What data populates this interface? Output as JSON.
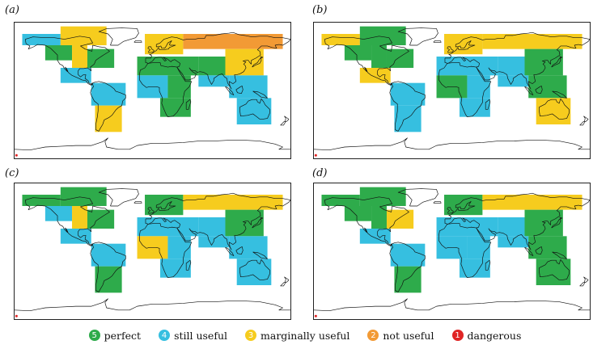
{
  "colors": {
    "perfect": "#2eab4b",
    "still_useful": "#36bfe0",
    "marginally_useful": "#f6cc1e",
    "not_useful": "#f29a35",
    "dangerous": "#e02525",
    "coast": "#111111"
  },
  "panels": [
    {
      "label": "(a)",
      "regions": [
        {
          "lon": [
            -170,
            -120
          ],
          "lat": [
            60,
            75
          ],
          "rating": "still_useful"
        },
        {
          "lon": [
            -140,
            -105
          ],
          "lat": [
            40,
            60
          ],
          "rating": "perfect"
        },
        {
          "lon": [
            -120,
            -60
          ],
          "lat": [
            60,
            85
          ],
          "rating": "marginally_useful"
        },
        {
          "lon": [
            -105,
            -85
          ],
          "lat": [
            30,
            60
          ],
          "rating": "marginally_useful"
        },
        {
          "lon": [
            -85,
            -50
          ],
          "lat": [
            30,
            55
          ],
          "rating": "perfect"
        },
        {
          "lon": [
            -120,
            -80
          ],
          "lat": [
            10,
            30
          ],
          "rating": "still_useful"
        },
        {
          "lon": [
            -80,
            -35
          ],
          "lat": [
            -20,
            10
          ],
          "rating": "still_useful"
        },
        {
          "lon": [
            -75,
            -40
          ],
          "lat": [
            -55,
            -20
          ],
          "rating": "marginally_useful"
        },
        {
          "lon": [
            -10,
            40
          ],
          "lat": [
            48,
            75
          ],
          "rating": "marginally_useful"
        },
        {
          "lon": [
            40,
            170
          ],
          "lat": [
            55,
            75
          ],
          "rating": "not_useful"
        },
        {
          "lon": [
            -20,
            60
          ],
          "lat": [
            20,
            45
          ],
          "rating": "perfect"
        },
        {
          "lon": [
            -20,
            20
          ],
          "lat": [
            -10,
            20
          ],
          "rating": "still_useful"
        },
        {
          "lon": [
            20,
            50
          ],
          "lat": [
            -10,
            20
          ],
          "rating": "perfect"
        },
        {
          "lon": [
            10,
            50
          ],
          "lat": [
            -35,
            -10
          ],
          "rating": "perfect"
        },
        {
          "lon": [
            60,
            95
          ],
          "lat": [
            20,
            45
          ],
          "rating": "perfect"
        },
        {
          "lon": [
            95,
            145
          ],
          "lat": [
            20,
            55
          ],
          "rating": "marginally_useful"
        },
        {
          "lon": [
            60,
            100
          ],
          "lat": [
            5,
            20
          ],
          "rating": "still_useful"
        },
        {
          "lon": [
            100,
            150
          ],
          "lat": [
            -10,
            20
          ],
          "rating": "still_useful"
        },
        {
          "lon": [
            110,
            155
          ],
          "lat": [
            -45,
            -10
          ],
          "rating": "still_useful"
        }
      ]
    },
    {
      "label": "(b)",
      "regions": [
        {
          "lon": [
            -170,
            -120
          ],
          "lat": [
            60,
            75
          ],
          "rating": "marginally_useful"
        },
        {
          "lon": [
            -140,
            -105
          ],
          "lat": [
            40,
            60
          ],
          "rating": "perfect"
        },
        {
          "lon": [
            -120,
            -60
          ],
          "lat": [
            60,
            85
          ],
          "rating": "perfect"
        },
        {
          "lon": [
            -105,
            -85
          ],
          "lat": [
            30,
            60
          ],
          "rating": "perfect"
        },
        {
          "lon": [
            -85,
            -50
          ],
          "lat": [
            30,
            55
          ],
          "rating": "perfect"
        },
        {
          "lon": [
            -120,
            -80
          ],
          "lat": [
            10,
            30
          ],
          "rating": "marginally_useful"
        },
        {
          "lon": [
            -80,
            -35
          ],
          "lat": [
            -20,
            10
          ],
          "rating": "still_useful"
        },
        {
          "lon": [
            -75,
            -40
          ],
          "lat": [
            -55,
            -20
          ],
          "rating": "still_useful"
        },
        {
          "lon": [
            -10,
            40
          ],
          "lat": [
            48,
            75
          ],
          "rating": "marginally_useful"
        },
        {
          "lon": [
            40,
            170
          ],
          "lat": [
            55,
            75
          ],
          "rating": "marginally_useful"
        },
        {
          "lon": [
            -20,
            60
          ],
          "lat": [
            20,
            45
          ],
          "rating": "still_useful"
        },
        {
          "lon": [
            -20,
            20
          ],
          "lat": [
            -10,
            20
          ],
          "rating": "perfect"
        },
        {
          "lon": [
            20,
            50
          ],
          "lat": [
            -10,
            20
          ],
          "rating": "still_useful"
        },
        {
          "lon": [
            10,
            50
          ],
          "lat": [
            -35,
            -10
          ],
          "rating": "still_useful"
        },
        {
          "lon": [
            60,
            95
          ],
          "lat": [
            20,
            45
          ],
          "rating": "still_useful"
        },
        {
          "lon": [
            95,
            145
          ],
          "lat": [
            20,
            55
          ],
          "rating": "perfect"
        },
        {
          "lon": [
            60,
            100
          ],
          "lat": [
            5,
            20
          ],
          "rating": "still_useful"
        },
        {
          "lon": [
            100,
            150
          ],
          "lat": [
            -10,
            20
          ],
          "rating": "perfect"
        },
        {
          "lon": [
            110,
            155
          ],
          "lat": [
            -45,
            -10
          ],
          "rating": "marginally_useful"
        }
      ]
    },
    {
      "label": "(c)",
      "regions": [
        {
          "lon": [
            -170,
            -120
          ],
          "lat": [
            60,
            75
          ],
          "rating": "perfect"
        },
        {
          "lon": [
            -140,
            -105
          ],
          "lat": [
            40,
            60
          ],
          "rating": "still_useful"
        },
        {
          "lon": [
            -120,
            -60
          ],
          "lat": [
            60,
            85
          ],
          "rating": "perfect"
        },
        {
          "lon": [
            -105,
            -85
          ],
          "lat": [
            30,
            60
          ],
          "rating": "marginally_useful"
        },
        {
          "lon": [
            -85,
            -50
          ],
          "lat": [
            30,
            55
          ],
          "rating": "perfect"
        },
        {
          "lon": [
            -120,
            -80
          ],
          "lat": [
            10,
            30
          ],
          "rating": "still_useful"
        },
        {
          "lon": [
            -80,
            -35
          ],
          "lat": [
            -20,
            10
          ],
          "rating": "still_useful"
        },
        {
          "lon": [
            -75,
            -40
          ],
          "lat": [
            -55,
            -20
          ],
          "rating": "perfect"
        },
        {
          "lon": [
            -10,
            40
          ],
          "lat": [
            48,
            75
          ],
          "rating": "perfect"
        },
        {
          "lon": [
            40,
            170
          ],
          "lat": [
            55,
            75
          ],
          "rating": "marginally_useful"
        },
        {
          "lon": [
            -20,
            60
          ],
          "lat": [
            20,
            45
          ],
          "rating": "still_useful"
        },
        {
          "lon": [
            -20,
            20
          ],
          "lat": [
            -10,
            20
          ],
          "rating": "marginally_useful"
        },
        {
          "lon": [
            20,
            50
          ],
          "lat": [
            -10,
            20
          ],
          "rating": "still_useful"
        },
        {
          "lon": [
            10,
            50
          ],
          "lat": [
            -35,
            -10
          ],
          "rating": "still_useful"
        },
        {
          "lon": [
            60,
            95
          ],
          "lat": [
            20,
            45
          ],
          "rating": "still_useful"
        },
        {
          "lon": [
            95,
            145
          ],
          "lat": [
            20,
            55
          ],
          "rating": "perfect"
        },
        {
          "lon": [
            60,
            100
          ],
          "lat": [
            5,
            20
          ],
          "rating": "still_useful"
        },
        {
          "lon": [
            100,
            150
          ],
          "lat": [
            -10,
            20
          ],
          "rating": "still_useful"
        },
        {
          "lon": [
            110,
            155
          ],
          "lat": [
            -45,
            -10
          ],
          "rating": "still_useful"
        }
      ]
    },
    {
      "label": "(d)",
      "regions": [
        {
          "lon": [
            -170,
            -120
          ],
          "lat": [
            60,
            75
          ],
          "rating": "perfect"
        },
        {
          "lon": [
            -140,
            -105
          ],
          "lat": [
            40,
            60
          ],
          "rating": "perfect"
        },
        {
          "lon": [
            -120,
            -60
          ],
          "lat": [
            60,
            85
          ],
          "rating": "perfect"
        },
        {
          "lon": [
            -105,
            -85
          ],
          "lat": [
            30,
            60
          ],
          "rating": "perfect"
        },
        {
          "lon": [
            -85,
            -50
          ],
          "lat": [
            30,
            55
          ],
          "rating": "marginally_useful"
        },
        {
          "lon": [
            -120,
            -80
          ],
          "lat": [
            10,
            30
          ],
          "rating": "still_useful"
        },
        {
          "lon": [
            -80,
            -35
          ],
          "lat": [
            -20,
            10
          ],
          "rating": "still_useful"
        },
        {
          "lon": [
            -75,
            -40
          ],
          "lat": [
            -55,
            -20
          ],
          "rating": "perfect"
        },
        {
          "lon": [
            -10,
            40
          ],
          "lat": [
            48,
            75
          ],
          "rating": "perfect"
        },
        {
          "lon": [
            40,
            170
          ],
          "lat": [
            55,
            75
          ],
          "rating": "marginally_useful"
        },
        {
          "lon": [
            -20,
            60
          ],
          "lat": [
            20,
            45
          ],
          "rating": "still_useful"
        },
        {
          "lon": [
            -20,
            20
          ],
          "lat": [
            -10,
            20
          ],
          "rating": "still_useful"
        },
        {
          "lon": [
            20,
            50
          ],
          "lat": [
            -10,
            20
          ],
          "rating": "still_useful"
        },
        {
          "lon": [
            10,
            50
          ],
          "lat": [
            -35,
            -10
          ],
          "rating": "still_useful"
        },
        {
          "lon": [
            60,
            95
          ],
          "lat": [
            20,
            45
          ],
          "rating": "still_useful"
        },
        {
          "lon": [
            95,
            145
          ],
          "lat": [
            20,
            55
          ],
          "rating": "perfect"
        },
        {
          "lon": [
            60,
            100
          ],
          "lat": [
            5,
            20
          ],
          "rating": "still_useful"
        },
        {
          "lon": [
            100,
            150
          ],
          "lat": [
            -10,
            20
          ],
          "rating": "perfect"
        },
        {
          "lon": [
            110,
            155
          ],
          "lat": [
            -45,
            -10
          ],
          "rating": "perfect"
        }
      ]
    }
  ],
  "legend": [
    {
      "number": "5",
      "label": "perfect",
      "rating": "perfect"
    },
    {
      "number": "4",
      "label": "still useful",
      "rating": "still_useful"
    },
    {
      "number": "3",
      "label": "marginally useful",
      "rating": "marginally_useful"
    },
    {
      "number": "2",
      "label": "not useful",
      "rating": "not_useful"
    },
    {
      "number": "1",
      "label": "dangerous",
      "rating": "dangerous"
    }
  ]
}
